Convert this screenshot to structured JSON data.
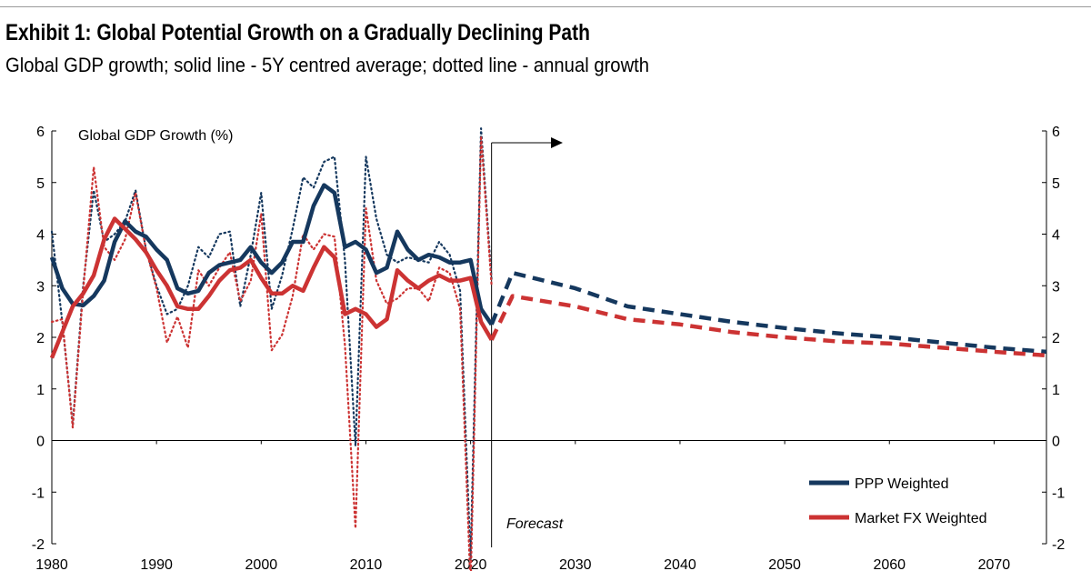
{
  "header": {
    "title": "Exhibit 1: Global Potential Growth on a Gradually Declining Path",
    "subtitle": "Global GDP growth; solid line - 5Y centred average; dotted line - annual growth"
  },
  "chart_data": {
    "type": "line",
    "title": "Exhibit 1: Global Potential Growth on a Gradually Declining Path",
    "axis_label": "Global GDP Growth (%)",
    "xlim": [
      1980,
      2075
    ],
    "ylim": [
      -2,
      6
    ],
    "x_ticks": [
      1980,
      1990,
      2000,
      2010,
      2020,
      2030,
      2040,
      2050,
      2060,
      2070
    ],
    "y_ticks": [
      -2,
      -1,
      0,
      1,
      2,
      3,
      4,
      5,
      6
    ],
    "forecast_start": 2022,
    "forecast_label": "Forecast",
    "colors": {
      "ppp": "#15385e",
      "mfx": "#cc3333"
    },
    "series": [
      {
        "name": "PPP Weighted",
        "style": "solid",
        "x": [
          1980,
          1981,
          1982,
          1983,
          1984,
          1985,
          1986,
          1987,
          1988,
          1989,
          1990,
          1991,
          1992,
          1993,
          1994,
          1995,
          1996,
          1997,
          1998,
          1999,
          2000,
          2001,
          2002,
          2003,
          2004,
          2005,
          2006,
          2007,
          2008,
          2009,
          2010,
          2011,
          2012,
          2013,
          2014,
          2015,
          2016,
          2017,
          2018,
          2019,
          2020,
          2021,
          2022
        ],
        "values": [
          3.55,
          2.95,
          2.65,
          2.62,
          2.8,
          3.1,
          3.85,
          4.25,
          4.05,
          3.95,
          3.7,
          3.5,
          2.95,
          2.85,
          2.9,
          3.25,
          3.4,
          3.45,
          3.5,
          3.75,
          3.45,
          3.25,
          3.45,
          3.85,
          3.85,
          4.55,
          4.95,
          4.8,
          3.75,
          3.85,
          3.7,
          3.25,
          3.35,
          4.05,
          3.7,
          3.5,
          3.6,
          3.55,
          3.45,
          3.45,
          3.5,
          2.55,
          2.25
        ]
      },
      {
        "name": "PPP Weighted",
        "style": "dotted",
        "x": [
          1980,
          1981,
          1982,
          1983,
          1984,
          1985,
          1986,
          1987,
          1988,
          1989,
          1990,
          1991,
          1992,
          1993,
          1994,
          1995,
          1996,
          1997,
          1998,
          1999,
          2000,
          2001,
          2002,
          2003,
          2004,
          2005,
          2006,
          2007,
          2008,
          2009,
          2010,
          2011,
          2012,
          2013,
          2014,
          2015,
          2016,
          2017,
          2018,
          2019,
          2020,
          2021,
          2022
        ],
        "values": [
          4.05,
          2.3,
          0.3,
          3.0,
          4.85,
          3.85,
          4.0,
          4.25,
          4.85,
          3.7,
          3.0,
          2.45,
          2.55,
          3.0,
          3.75,
          3.55,
          4.0,
          4.05,
          2.6,
          3.6,
          4.8,
          2.55,
          3.2,
          4.1,
          5.1,
          4.9,
          5.4,
          5.5,
          3.5,
          -0.1,
          5.5,
          4.3,
          3.6,
          3.45,
          3.55,
          3.5,
          3.45,
          3.85,
          3.6,
          2.9,
          -2.3,
          6.05,
          3.1
        ]
      },
      {
        "name": "PPP Weighted",
        "style": "dashed",
        "x": [
          2022,
          2024,
          2030,
          2035,
          2040,
          2045,
          2050,
          2055,
          2060,
          2065,
          2070,
          2075
        ],
        "values": [
          2.25,
          3.25,
          2.95,
          2.6,
          2.45,
          2.3,
          2.18,
          2.08,
          2.0,
          1.9,
          1.8,
          1.72
        ]
      },
      {
        "name": "Market FX Weighted",
        "style": "solid",
        "x": [
          1980,
          1981,
          1982,
          1983,
          1984,
          1985,
          1986,
          1987,
          1988,
          1989,
          1990,
          1991,
          1992,
          1993,
          1994,
          1995,
          1996,
          1997,
          1998,
          1999,
          2000,
          2001,
          2002,
          2003,
          2004,
          2005,
          2006,
          2007,
          2008,
          2009,
          2010,
          2011,
          2012,
          2013,
          2014,
          2015,
          2016,
          2017,
          2018,
          2019,
          2020,
          2021,
          2022
        ],
        "values": [
          1.6,
          2.1,
          2.6,
          2.85,
          3.2,
          3.9,
          4.3,
          4.1,
          3.9,
          3.65,
          3.3,
          3.0,
          2.6,
          2.55,
          2.55,
          2.8,
          3.1,
          3.3,
          3.35,
          3.5,
          3.15,
          2.85,
          2.85,
          3.0,
          2.9,
          3.35,
          3.75,
          3.55,
          2.45,
          2.55,
          2.45,
          2.2,
          2.35,
          3.3,
          3.1,
          2.95,
          3.1,
          3.2,
          3.1,
          3.1,
          3.15,
          2.3,
          1.95
        ]
      },
      {
        "name": "Market FX Weighted",
        "style": "dotted",
        "x": [
          1980,
          1981,
          1982,
          1983,
          1984,
          1985,
          1986,
          1987,
          1988,
          1989,
          1990,
          1991,
          1992,
          1993,
          1994,
          1995,
          1996,
          1997,
          1998,
          1999,
          2000,
          2001,
          2002,
          2003,
          2004,
          2005,
          2006,
          2007,
          2008,
          2009,
          2010,
          2011,
          2012,
          2013,
          2014,
          2015,
          2016,
          2017,
          2018,
          2019,
          2020,
          2021,
          2022
        ],
        "values": [
          2.3,
          2.35,
          0.25,
          2.9,
          5.3,
          3.75,
          3.5,
          3.9,
          4.8,
          3.7,
          2.95,
          1.9,
          2.4,
          1.8,
          3.3,
          3.0,
          3.35,
          3.65,
          2.7,
          3.1,
          4.4,
          1.75,
          2.05,
          2.8,
          4.0,
          3.7,
          4.0,
          3.95,
          1.85,
          -1.7,
          4.5,
          3.1,
          2.65,
          2.75,
          2.95,
          2.95,
          2.7,
          3.35,
          3.25,
          2.55,
          -2.85,
          5.9,
          3.0
        ]
      },
      {
        "name": "Market FX Weighted",
        "style": "dashed",
        "x": [
          2022,
          2024,
          2030,
          2035,
          2040,
          2045,
          2050,
          2055,
          2060,
          2065,
          2070,
          2075
        ],
        "values": [
          1.95,
          2.8,
          2.6,
          2.35,
          2.25,
          2.1,
          2.0,
          1.92,
          1.88,
          1.8,
          1.72,
          1.65
        ]
      }
    ],
    "legend": {
      "position": "bottom-right",
      "items": [
        {
          "label": "PPP Weighted",
          "color": "#15385e"
        },
        {
          "label": "Market FX Weighted",
          "color": "#cc3333"
        }
      ]
    }
  }
}
